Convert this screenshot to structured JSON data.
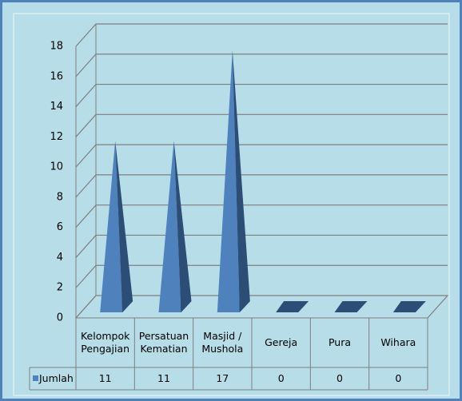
{
  "chart_data": {
    "type": "pyramid3d",
    "categories": [
      "Kelompok Pengajian",
      "Persatuan Kematian",
      "Masjid / Mushola",
      "Gereja",
      "Pura",
      "Wihara"
    ],
    "series": [
      {
        "name": "Jumlah",
        "color": "#4f81bd",
        "values": [
          11,
          11,
          17,
          0,
          0,
          0
        ]
      }
    ],
    "ylim": [
      0,
      18
    ],
    "yticks": [
      0,
      2,
      4,
      6,
      8,
      10,
      12,
      14,
      16,
      18
    ],
    "grid": true,
    "data_table": true
  }
}
